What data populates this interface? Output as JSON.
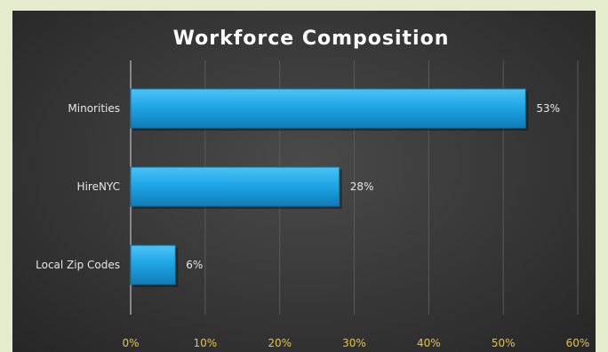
{
  "chart_data": {
    "type": "bar",
    "orientation": "horizontal",
    "title": "Workforce Composition",
    "categories": [
      "Minorities",
      "HireNYC",
      "Local Zip Codes"
    ],
    "values": [
      53,
      28,
      6
    ],
    "data_labels": [
      "53%",
      "28%",
      "6%"
    ],
    "xlim": [
      0,
      60
    ],
    "xticks": [
      "0%",
      "10%",
      "20%",
      "30%",
      "40%",
      "50%",
      "60%"
    ],
    "grid": true,
    "legend": "none",
    "colors": {
      "bar": "#1fa6e6",
      "bar_dark": "#0f7cb8",
      "background": "#333333",
      "frame": "#e4eccd",
      "tick_text": "#e6c24a"
    }
  }
}
